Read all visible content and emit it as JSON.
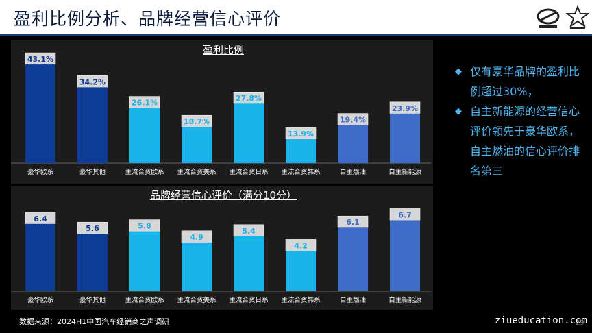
{
  "header": {
    "title": "盈利比例分析、品牌经营信心评价"
  },
  "bullets": [
    "仅有豪华品牌的盈利比例超过30%，",
    "自主新能源的经营信心评价领先于豪华欧系，自主燃油的信心评价排名第三"
  ],
  "footer": {
    "source": "数据来源：2024H1中国汽车经销商之声调研",
    "watermark": "ziueducation.com",
    "page": "29"
  },
  "colors": {
    "dark_blue": "#0d3c94",
    "cyan": "#19b4ea",
    "mid_blue": "#3e6cc8",
    "accent_text": "#4fb4f0"
  },
  "chart_data": [
    {
      "type": "bar",
      "title": "盈利比例",
      "categories": [
        "豪华欧系",
        "豪华其他",
        "主流合资欧系",
        "主流合资美系",
        "主流合资日系",
        "主流合资韩系",
        "自主燃油",
        "自主新能源"
      ],
      "values": [
        43.1,
        34.2,
        26.1,
        18.7,
        27.8,
        13.9,
        19.4,
        23.9
      ],
      "labels": [
        "43.1%",
        "34.2%",
        "26.1%",
        "18.7%",
        "27.8%",
        "13.9%",
        "19.4%",
        "23.9%"
      ],
      "bar_colors": [
        "#0d3c94",
        "#0d3c94",
        "#19b4ea",
        "#19b4ea",
        "#19b4ea",
        "#19b4ea",
        "#3e6cc8",
        "#3e6cc8"
      ],
      "ylim": [
        0,
        45
      ]
    },
    {
      "type": "bar",
      "title": "品牌经营信心评价（满分10分）",
      "categories": [
        "豪华欧系",
        "豪华其他",
        "主流合资欧系",
        "主流合资美系",
        "主流合资日系",
        "主流合资韩系",
        "自主燃油",
        "自主新能源"
      ],
      "values": [
        6.4,
        5.6,
        5.8,
        4.9,
        5.4,
        4.2,
        6.1,
        6.7
      ],
      "labels": [
        "6.4",
        "5.6",
        "5.8",
        "4.9",
        "5.4",
        "4.2",
        "6.1",
        "6.7"
      ],
      "bar_colors": [
        "#0d3c94",
        "#0d3c94",
        "#19b4ea",
        "#19b4ea",
        "#19b4ea",
        "#19b4ea",
        "#3e6cc8",
        "#3e6cc8"
      ],
      "ylim": [
        0,
        7
      ]
    }
  ]
}
